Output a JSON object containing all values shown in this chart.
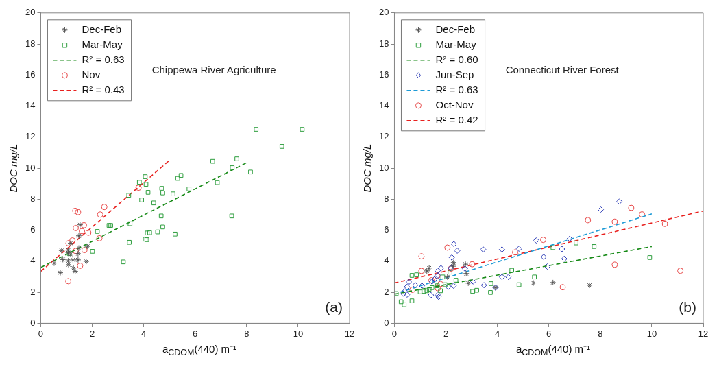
{
  "chart_data": [
    {
      "type": "scatter",
      "xlabel": "a$_{CDOM}$(440) m⁻¹",
      "ylabel": "DOC mg/L",
      "xlim": [
        0,
        12
      ],
      "xticks": [
        0,
        2,
        4,
        6,
        8,
        10,
        12
      ],
      "ylim": [
        0,
        20
      ],
      "yticks": [
        0,
        2,
        4,
        6,
        8,
        10,
        12,
        14,
        16,
        18,
        20
      ],
      "legend": "top left",
      "annotations": [
        "Chippewa River Agriculture",
        "(a)"
      ],
      "series": [
        {
          "name": "Dec-Feb",
          "type": "scatter",
          "marker": "cross",
          "color": "#555555",
          "x": [
            1.53,
            1.48,
            1.16,
            0.81,
            1.07,
            1.16,
            1.48,
            1.45,
            0.86,
            1.07,
            1.25,
            1.45,
            1.77,
            0.52,
            1.08,
            1.27,
            1.34,
            0.76,
            1.82,
            1.07
          ],
          "values": [
            6.35,
            5.64,
            5.16,
            4.69,
            4.54,
            4.45,
            4.85,
            4.49,
            4.11,
            4.03,
            4.09,
            4.09,
            3.99,
            3.88,
            3.78,
            3.56,
            3.35,
            3.26,
            4.96,
            4.71
          ]
        },
        {
          "name": "Mar-May",
          "type": "scatter",
          "marker": "square",
          "color": "#2e9e3e",
          "x": [
            3.42,
            3.83,
            3.92,
            4.06,
            4.09,
            4.17,
            4.39,
            4.7,
            4.74,
            4.68,
            4.74,
            4.54,
            4.14,
            4.23,
            4.06,
            4.12,
            3.47,
            3.44,
            3.21,
            5.14,
            5.32,
            5.45,
            5.22,
            5.76,
            6.68,
            6.86,
            7.42,
            7.44,
            7.62,
            2.2,
            2.65,
            2.72,
            2.01,
            1.76,
            8.37,
            10.16,
            9.37,
            8.15,
            1.11
          ],
          "values": [
            8.25,
            9.09,
            7.95,
            9.45,
            8.96,
            8.44,
            7.76,
            8.7,
            8.4,
            6.92,
            6.21,
            5.89,
            5.82,
            5.84,
            5.42,
            5.39,
            6.42,
            5.22,
            3.96,
            8.34,
            9.34,
            9.53,
            5.75,
            8.66,
            10.44,
            9.07,
            6.92,
            10.03,
            10.6,
            5.92,
            6.31,
            6.31,
            4.64,
            4.99,
            12.5,
            12.5,
            11.4,
            9.75,
            4.49
          ]
        },
        {
          "name": "R² = 0.63",
          "type": "line",
          "marker": "none",
          "line_style": "dashed",
          "color": "#178a17",
          "x": [
            0,
            8
          ],
          "values": [
            3.6,
            10.35
          ]
        },
        {
          "name": "Nov",
          "type": "scatter",
          "marker": "circle",
          "color": "#e84a4a",
          "x": [
            1.34,
            1.45,
            2.47,
            2.31,
            1.68,
            1.36,
            1.6,
            1.85,
            2.28,
            1.23,
            1.08,
            1.36,
            1.7,
            1.53,
            1.07,
            3.8
          ],
          "values": [
            7.25,
            7.17,
            7.5,
            7.01,
            6.32,
            6.14,
            5.94,
            5.84,
            5.48,
            5.34,
            5.16,
            4.66,
            4.72,
            3.71,
            2.72,
            8.74
          ]
        },
        {
          "name": "R² = 0.43",
          "type": "line",
          "marker": "none",
          "line_style": "dashed",
          "color": "#e8201e",
          "x": [
            0,
            5
          ],
          "values": [
            3.35,
            10.5
          ]
        }
      ]
    },
    {
      "type": "scatter",
      "xlabel": "a$_{CDOM}$(440) m⁻¹",
      "ylabel": "DOC mg/L",
      "xlim": [
        0,
        12
      ],
      "xticks": [
        0,
        2,
        4,
        6,
        8,
        10,
        12
      ],
      "ylim": [
        0,
        20
      ],
      "yticks": [
        0,
        2,
        4,
        6,
        8,
        10,
        12,
        14,
        16,
        18,
        20
      ],
      "legend": "top left",
      "annotations": [
        "Connecticut River Forest",
        "(b)"
      ],
      "series": [
        {
          "name": "Dec-Feb",
          "type": "scatter",
          "marker": "cross",
          "color": "#555555",
          "x": [
            1.35,
            1.26,
            2.3,
            2.28,
            2.76,
            2.79,
            2.87,
            2.06,
            3.93,
            5.4,
            6.16,
            7.58
          ],
          "values": [
            3.56,
            3.38,
            3.92,
            3.68,
            3.81,
            3.21,
            2.59,
            2.99,
            2.3,
            2.6,
            2.63,
            2.45
          ]
        },
        {
          "name": "Mar-May",
          "type": "scatter",
          "marker": "square",
          "color": "#2e9e3e",
          "x": [
            0.68,
            0.86,
            0.07,
            0.26,
            0.38,
            0.68,
            1.0,
            1.14,
            1.26,
            1.35,
            1.46,
            1.67,
            1.79,
            1.88,
            2.16,
            2.39,
            3.04,
            3.2,
            3.75,
            3.73,
            4.56,
            4.84,
            5.44,
            6.16,
            7.06,
            1.97,
            7.76,
            9.92
          ],
          "values": [
            3.09,
            3.13,
            1.92,
            1.39,
            1.2,
            1.45,
            2.03,
            2.06,
            2.1,
            2.2,
            2.3,
            2.42,
            2.1,
            2.99,
            3.3,
            2.78,
            2.06,
            2.13,
            2.56,
            1.99,
            3.42,
            2.49,
            2.99,
            4.88,
            5.18,
            2.49,
            4.95,
            4.24
          ]
        },
        {
          "name": "R² = 0.60",
          "type": "line",
          "marker": "none",
          "line_style": "dashed",
          "color": "#178a17",
          "x": [
            0,
            10
          ],
          "values": [
            1.88,
            4.95
          ]
        },
        {
          "name": "Jun-Sep",
          "type": "scatter",
          "marker": "diamond",
          "color": "#3040b8",
          "x": [
            2.31,
            2.44,
            2.23,
            3.45,
            4.18,
            4.84,
            5.51,
            5.8,
            5.94,
            6.81,
            2.19,
            2.74,
            1.81,
            1.68,
            1.69,
            1.46,
            3.06,
            3.48,
            4.18,
            4.43,
            3.93,
            2.09,
            2.3,
            1.72,
            1.42,
            1.07,
            0.81,
            0.56,
            0.49,
            0.4,
            0.49,
            0.35,
            1.69,
            1.56,
            8.74,
            8.02,
            6.51,
            6.6
          ],
          "values": [
            5.11,
            4.68,
            4.25,
            4.76,
            4.76,
            4.81,
            5.34,
            4.28,
            3.66,
            5.45,
            3.56,
            3.53,
            3.56,
            3.39,
            3.09,
            2.7,
            2.7,
            2.46,
            2.99,
            2.99,
            2.3,
            2.35,
            2.42,
            1.7,
            1.82,
            2.42,
            2.46,
            2.67,
            2.35,
            2.06,
            1.85,
            1.91,
            1.85,
            2.85,
            7.85,
            7.33,
            4.79,
            4.16
          ]
        },
        {
          "name": "R² = 0.63",
          "type": "line",
          "marker": "none",
          "line_style": "dashed",
          "color": "#1c9ad6",
          "x": [
            0.2,
            10
          ],
          "values": [
            2.0,
            7.05
          ]
        },
        {
          "name": "Oct-Nov",
          "type": "scatter",
          "marker": "circle",
          "color": "#e84a4a",
          "x": [
            2.06,
            1.05,
            1.05,
            2.2,
            3.02,
            4.69,
            5.78,
            6.54,
            1.44,
            1.69,
            1.79,
            0.7,
            1.67,
            7.52,
            8.56,
            9.2,
            9.62,
            10.51,
            8.56,
            11.11
          ],
          "values": [
            4.88,
            4.32,
            3.38,
            3.53,
            3.81,
            4.58,
            5.38,
            2.33,
            2.78,
            2.27,
            2.53,
            2.16,
            3.06,
            6.65,
            6.55,
            7.44,
            7.02,
            6.41,
            3.78,
            3.39
          ]
        },
        {
          "name": "R² = 0.42",
          "type": "line",
          "marker": "none",
          "line_style": "dashed",
          "color": "#e8201e",
          "x": [
            0,
            12
          ],
          "values": [
            2.6,
            7.24
          ]
        }
      ]
    }
  ]
}
